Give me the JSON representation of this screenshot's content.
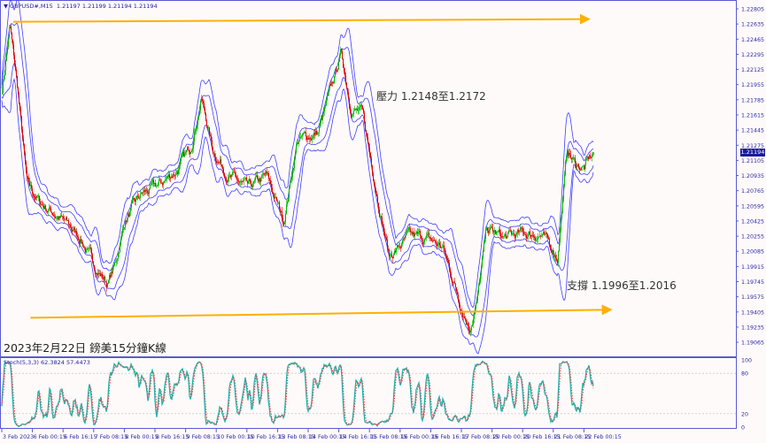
{
  "header": {
    "symbol": "GBPUSD#,M15",
    "ohlc": "1.21197 1.21199 1.21194 1.21194",
    "menu_icon": "triangle-down-icon"
  },
  "annotations": {
    "resistance": "壓力 1.2148至1.2172",
    "support": "支撐 1.1996至1.2016",
    "title": "2023年2月22日 鎊美15分鐘K線"
  },
  "colors": {
    "background": "#fffafa",
    "axis": "#5a5ad0",
    "up": "#00b400",
    "down": "#e00000",
    "bands": "#4040ff",
    "trendline": "#ffb000",
    "stoch_k": "#20b2aa",
    "stoch_d": "#ff3030",
    "price_tag": "#1a1aa0"
  },
  "chart_data": [
    {
      "type": "candlestick",
      "symbol": "GBPUSD#",
      "timeframe": "M15",
      "last_price": "1.21194",
      "ylim": [
        1.18985,
        1.22885
      ],
      "y_ticks": [
        "1.22805",
        "1.22635",
        "1.22465",
        "1.22295",
        "1.22125",
        "1.21955",
        "1.21785",
        "1.21615",
        "1.21445",
        "1.21275",
        "1.21105",
        "1.20935",
        "1.20765",
        "1.20595",
        "1.20425",
        "1.20255",
        "1.20085",
        "1.19915",
        "1.19745",
        "1.19575",
        "1.19405",
        "1.19235",
        "1.19065"
      ],
      "x_ticks": [
        "3 Feb 2023",
        "6 Feb 00:15",
        "6 Feb 16:15",
        "7 Feb 08:15",
        "8 Feb 00:15",
        "8 Feb 16:15",
        "9 Feb 08:15",
        "10 Feb 00:15",
        "10 Feb 16:15",
        "13 Feb 08:15",
        "14 Feb 00:15",
        "14 Feb 16:15",
        "15 Feb 08:15",
        "16 Feb 00:15",
        "16 Feb 16:15",
        "17 Feb 08:15",
        "20 Feb 00:15",
        "20 Feb 16:15",
        "21 Feb 08:15",
        "22 Feb 00:15"
      ],
      "x_tick_times": [
        "2023-02-03T08:15",
        "2023-02-06T00:15",
        "2023-02-06T16:15",
        "2023-02-07T08:15",
        "2023-02-08T00:15",
        "2023-02-08T16:15",
        "2023-02-09T08:15",
        "2023-02-10T00:15",
        "2023-02-10T16:15",
        "2023-02-13T08:15",
        "2023-02-14T00:15",
        "2023-02-14T16:15",
        "2023-02-15T08:15",
        "2023-02-16T00:15",
        "2023-02-16T16:15",
        "2023-02-17T08:15",
        "2023-02-20T00:15",
        "2023-02-20T16:15",
        "2023-02-21T08:15",
        "2023-02-22T00:15"
      ],
      "price_path": [
        [
          "2023-02-03T08:15",
          1.2191
        ],
        [
          "2023-02-03T12:15",
          1.2261
        ],
        [
          "2023-02-03T16:15",
          1.2191
        ],
        [
          "2023-02-03T21:15",
          1.2082
        ],
        [
          "2023-02-06T04:15",
          1.2062
        ],
        [
          "2023-02-06T11:15",
          1.2052
        ],
        [
          "2023-02-06T18:15",
          1.2038
        ],
        [
          "2023-02-07T01:15",
          1.2023
        ],
        [
          "2023-02-07T08:15",
          1.1993
        ],
        [
          "2023-02-07T15:15",
          1.1973
        ],
        [
          "2023-02-07T19:15",
          1.1993
        ],
        [
          "2023-02-08T00:15",
          1.2043
        ],
        [
          "2023-02-08T09:15",
          1.2072
        ],
        [
          "2023-02-08T18:15",
          1.2082
        ],
        [
          "2023-02-09T04:15",
          1.2102
        ],
        [
          "2023-02-09T10:15",
          1.2122
        ],
        [
          "2023-02-09T16:15",
          1.2181
        ],
        [
          "2023-02-09T22:15",
          1.2122
        ],
        [
          "2023-02-10T07:15",
          1.2092
        ],
        [
          "2023-02-10T16:45",
          1.2077
        ],
        [
          "2023-02-13T02:15",
          1.2092
        ],
        [
          "2023-02-13T11:15",
          1.2043
        ],
        [
          "2023-02-13T18:15",
          1.2132
        ],
        [
          "2023-02-14T05:15",
          1.2142
        ],
        [
          "2023-02-14T12:15",
          1.2191
        ],
        [
          "2023-02-14T17:15",
          1.2231
        ],
        [
          "2023-02-14T22:15",
          1.2172
        ],
        [
          "2023-02-15T04:15",
          1.2162
        ],
        [
          "2023-02-15T12:15",
          1.2072
        ],
        [
          "2023-02-15T18:15",
          1.2003
        ],
        [
          "2023-02-16T04:15",
          1.2023
        ],
        [
          "2023-02-16T13:15",
          1.2023
        ],
        [
          "2023-02-16T22:15",
          1.2013
        ],
        [
          "2023-02-17T07:15",
          1.1953
        ],
        [
          "2023-02-17T12:15",
          1.1924
        ],
        [
          "2023-02-17T16:15",
          1.1953
        ],
        [
          "2023-02-17T21:15",
          1.2033
        ],
        [
          "2023-02-20T06:15",
          1.2023
        ],
        [
          "2023-02-20T16:15",
          1.2028
        ],
        [
          "2023-02-21T01:15",
          1.2028
        ],
        [
          "2023-02-21T10:15",
          1.2003
        ],
        [
          "2023-02-21T15:15",
          1.2122
        ],
        [
          "2023-02-21T19:15",
          1.2107
        ],
        [
          "2023-02-22T00:15",
          1.2102
        ],
        [
          "2023-02-22T05:15",
          1.21194
        ]
      ],
      "trendlines": [
        {
          "name": "resistance",
          "start": [
            "2023-02-03T14:15",
            1.2266
          ],
          "end": [
            "2023-02-22T02:45",
            1.2269
          ],
          "arrow": true
        },
        {
          "name": "support",
          "start": [
            "2023-02-03T23:15",
            1.1934
          ],
          "end": [
            "2023-02-22T14:15",
            1.1943
          ],
          "arrow": true
        }
      ],
      "overlays": "bands (blue)",
      "grid": false
    },
    {
      "type": "line",
      "indicator": "Stoch(5,3,3)",
      "label": "Stoch(5,3,3) 62.3824 57.4473",
      "main": 62.3824,
      "signal": 57.4473,
      "ylim": [
        0,
        100
      ],
      "y_ticks": [
        "100",
        "80",
        "20",
        "0"
      ],
      "levels": [
        20,
        80
      ]
    }
  ]
}
